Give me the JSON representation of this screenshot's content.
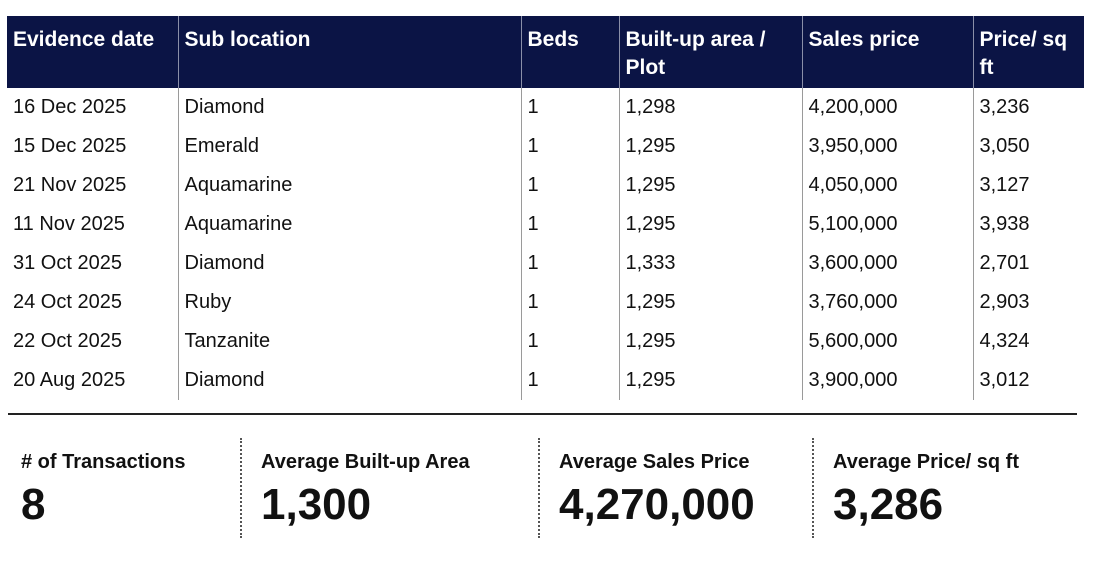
{
  "table": {
    "headers": {
      "evidence_date": "Evidence date",
      "sub_location": "Sub location",
      "beds": "Beds",
      "built_up": "Built-up area / Plot",
      "sales_price": "Sales price",
      "price_sqft": "Price/ sq ft"
    },
    "rows": [
      {
        "date": "16 Dec 2025",
        "location": "Diamond",
        "beds": "1",
        "area": "1,298",
        "price": "4,200,000",
        "psf": "3,236"
      },
      {
        "date": "15 Dec 2025",
        "location": "Emerald",
        "beds": "1",
        "area": "1,295",
        "price": "3,950,000",
        "psf": "3,050"
      },
      {
        "date": "21 Nov 2025",
        "location": "Aquamarine",
        "beds": "1",
        "area": "1,295",
        "price": "4,050,000",
        "psf": "3,127"
      },
      {
        "date": "11 Nov 2025",
        "location": "Aquamarine",
        "beds": "1",
        "area": "1,295",
        "price": "5,100,000",
        "psf": "3,938"
      },
      {
        "date": "31 Oct 2025",
        "location": "Diamond",
        "beds": "1",
        "area": "1,333",
        "price": "3,600,000",
        "psf": "2,701"
      },
      {
        "date": "24 Oct 2025",
        "location": "Ruby",
        "beds": "1",
        "area": "1,295",
        "price": "3,760,000",
        "psf": "2,903"
      },
      {
        "date": "22 Oct 2025",
        "location": "Tanzanite",
        "beds": "1",
        "area": "1,295",
        "price": "5,600,000",
        "psf": "4,324"
      },
      {
        "date": "20 Aug 2025",
        "location": "Diamond",
        "beds": "1",
        "area": "1,295",
        "price": "3,900,000",
        "psf": "3,012"
      }
    ]
  },
  "summary": {
    "transactions": {
      "label": "# of Transactions",
      "value": "8"
    },
    "avg_area": {
      "label": "Average Built-up Area",
      "value": "1,300"
    },
    "avg_price": {
      "label": "Average Sales Price",
      "value": "4,270,000"
    },
    "avg_psf": {
      "label": "Average Price/ sq ft",
      "value": "3,286"
    }
  }
}
